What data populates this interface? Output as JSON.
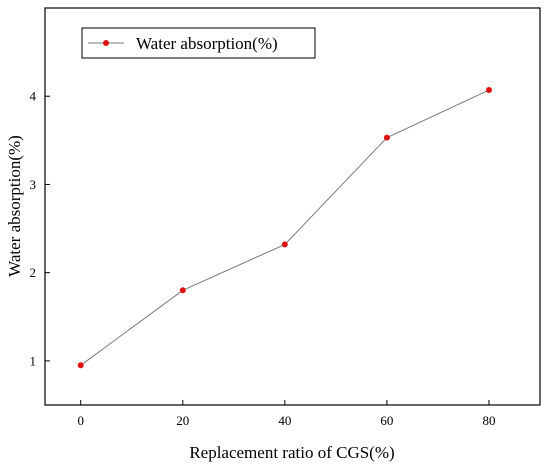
{
  "chart_data": {
    "type": "line",
    "title": "",
    "xlabel": "Replacement ratio of CGS(%)",
    "ylabel": "Water absorption(%)",
    "x": [
      0,
      20,
      40,
      60,
      80
    ],
    "xlim": [
      -7,
      90
    ],
    "ylim": [
      0.5,
      5.0
    ],
    "xticks": [
      "0",
      "20",
      "40",
      "60",
      "80"
    ],
    "yticks": [
      "1",
      "2",
      "3",
      "4"
    ],
    "grid": false,
    "legend_position": "top-left",
    "series": [
      {
        "name": "Water absorption(%)",
        "values": [
          0.95,
          1.8,
          2.32,
          3.53,
          4.07
        ],
        "line_color": "#7a7a7a",
        "marker_color": "#e01010"
      }
    ]
  }
}
